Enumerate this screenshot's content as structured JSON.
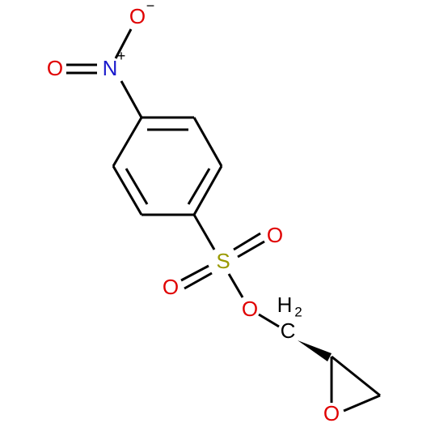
{
  "nitro": {
    "o_minus": "O",
    "minus": "−",
    "o": "O",
    "n": "N",
    "plus": "+"
  },
  "sulfonyl": {
    "s": "S",
    "o_right": "O",
    "o_left": "O",
    "o_ester": "O"
  },
  "methylene": {
    "h": "H",
    "sub": "2",
    "c": "C"
  },
  "epoxide": {
    "o": "O"
  }
}
